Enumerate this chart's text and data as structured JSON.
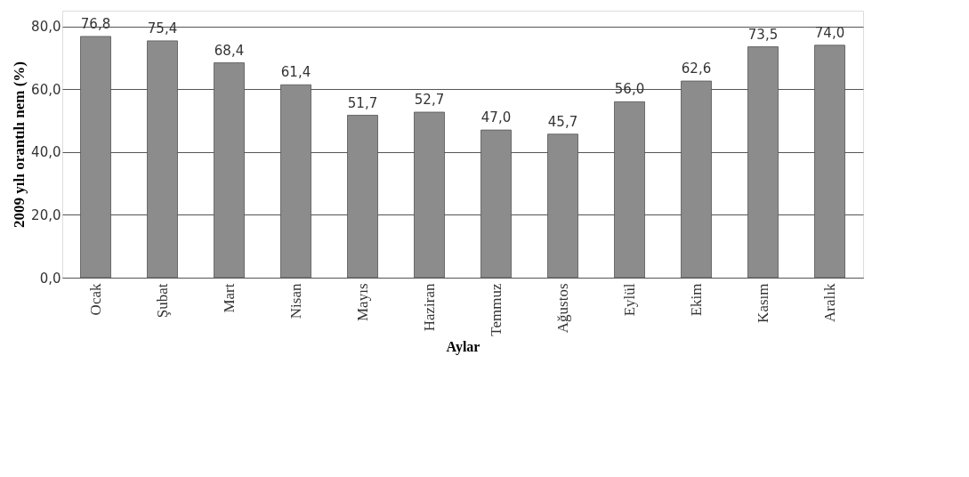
{
  "chart_data": {
    "type": "bar",
    "xlabel": "Aylar",
    "ylabel": "2009 yılı orantılı nem (%)",
    "categories": [
      "Ocak",
      "Şubat",
      "Mart",
      "Nisan",
      "Mayıs",
      "Haziran",
      "Temmuz",
      "Ağustos",
      "Eylül",
      "Ekim",
      "Kasım",
      "Aralık"
    ],
    "values": [
      76.8,
      75.4,
      68.4,
      61.4,
      51.7,
      52.7,
      47.0,
      45.7,
      56.0,
      62.6,
      73.5,
      74.0
    ],
    "value_labels": [
      "76,8",
      "75,4",
      "68,4",
      "61,4",
      "51,7",
      "52,7",
      "47,0",
      "45,7",
      "56,0",
      "62,6",
      "73,5",
      "74,0"
    ],
    "color": "#8c8c8c",
    "ylim": [
      0,
      85
    ],
    "yticks": [
      {
        "value": 0,
        "label": "0,0"
      },
      {
        "value": 20,
        "label": "20,0"
      },
      {
        "value": 40,
        "label": "40,0"
      },
      {
        "value": 60,
        "label": "60,0"
      },
      {
        "value": 80,
        "label": "80,0"
      }
    ],
    "grid": "y"
  }
}
